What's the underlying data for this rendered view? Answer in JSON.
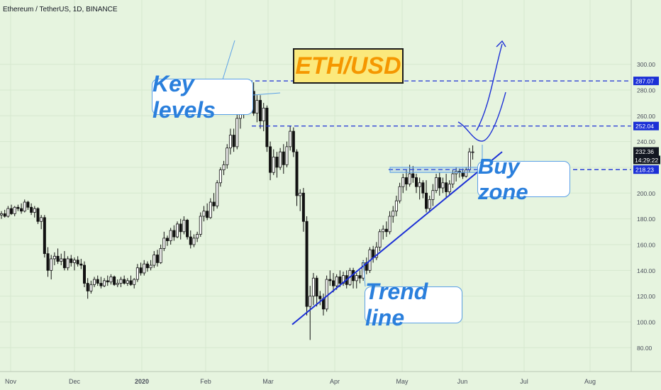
{
  "header": {
    "symbol": "Ethereum / TetherUS, 1D, BINANCE"
  },
  "annotations": {
    "title_box": "ETH/USD",
    "key_levels": "Key levels",
    "buy_zone": "Buy zone",
    "trend_line": "Trend line",
    "countdown": "14:29:22"
  },
  "colors": {
    "background": "#e6f4df",
    "candle": "#111111",
    "level_line": "#1b2fd6",
    "trend_line": "#1b2fd6",
    "label_bg": "#1b2fd6",
    "price_label_bg": "#131722",
    "callout_text": "#2a7fdc",
    "title_text": "#f59700",
    "title_bg": "#fbe97c"
  },
  "chart_data": {
    "type": "candlestick",
    "title": "Ethereum / TetherUS, 1D, BINANCE",
    "x_axis_ticks": [
      "Nov",
      "Dec",
      "2020",
      "Feb",
      "Mar",
      "Apr",
      "May",
      "Jun",
      "Jul",
      "Aug"
    ],
    "y_axis_ticks": [
      "300.00",
      "280.00",
      "260.00",
      "240.00",
      "220.00",
      "200.00",
      "180.00",
      "160.00",
      "140.00",
      "120.00",
      "100.00",
      "80.00"
    ],
    "ylim": [
      76,
      304
    ],
    "price_labels": [
      "287.07",
      "252.04",
      "232.36",
      "218.23"
    ],
    "horizontal_levels": [
      287.07,
      252.04,
      218.23
    ],
    "current_price": 232.36,
    "trend_line": {
      "from": [
        "2020-03-13",
        98
      ],
      "to": [
        "2020-06-20",
        232
      ]
    },
    "projected_path": "up from buy zone toward 287.07",
    "buy_zone": {
      "low": 216,
      "high": 220
    },
    "candles_ohlc_daily_approx": [
      [
        183,
        186,
        180,
        184
      ],
      [
        184,
        187,
        181,
        182
      ],
      [
        182,
        190,
        181,
        188
      ],
      [
        188,
        191,
        183,
        184
      ],
      [
        184,
        190,
        182,
        189
      ],
      [
        189,
        191,
        186,
        188
      ],
      [
        188,
        192,
        184,
        186
      ],
      [
        186,
        195,
        185,
        193
      ],
      [
        193,
        194,
        187,
        189
      ],
      [
        189,
        192,
        183,
        185
      ],
      [
        185,
        190,
        181,
        188
      ],
      [
        188,
        189,
        176,
        178
      ],
      [
        178,
        183,
        172,
        181
      ],
      [
        181,
        183,
        150,
        153
      ],
      [
        153,
        158,
        135,
        140
      ],
      [
        140,
        152,
        133,
        149
      ],
      [
        149,
        154,
        144,
        151
      ],
      [
        151,
        157,
        145,
        147
      ],
      [
        147,
        153,
        144,
        149
      ],
      [
        149,
        155,
        140,
        142
      ],
      [
        142,
        151,
        140,
        149
      ],
      [
        149,
        152,
        143,
        146
      ],
      [
        146,
        150,
        140,
        148
      ],
      [
        148,
        151,
        143,
        145
      ],
      [
        145,
        149,
        141,
        144
      ],
      [
        144,
        147,
        127,
        130
      ],
      [
        130,
        134,
        118,
        124
      ],
      [
        124,
        132,
        122,
        129
      ],
      [
        129,
        135,
        127,
        133
      ],
      [
        133,
        136,
        128,
        130
      ],
      [
        130,
        135,
        126,
        128
      ],
      [
        128,
        134,
        127,
        132
      ],
      [
        132,
        136,
        128,
        131
      ],
      [
        131,
        137,
        129,
        135
      ],
      [
        135,
        136,
        128,
        129
      ],
      [
        129,
        133,
        127,
        130
      ],
      [
        130,
        135,
        127,
        133
      ],
      [
        133,
        136,
        129,
        130
      ],
      [
        130,
        134,
        128,
        132
      ],
      [
        132,
        136,
        128,
        129
      ],
      [
        129,
        134,
        126,
        133
      ],
      [
        133,
        145,
        131,
        142
      ],
      [
        142,
        146,
        136,
        138
      ],
      [
        138,
        148,
        136,
        145
      ],
      [
        145,
        147,
        139,
        142
      ],
      [
        142,
        148,
        140,
        144
      ],
      [
        144,
        155,
        142,
        152
      ],
      [
        152,
        156,
        143,
        146
      ],
      [
        146,
        160,
        145,
        157
      ],
      [
        157,
        170,
        155,
        165
      ],
      [
        165,
        167,
        159,
        163
      ],
      [
        163,
        173,
        160,
        171
      ],
      [
        171,
        175,
        163,
        166
      ],
      [
        166,
        178,
        165,
        176
      ],
      [
        176,
        180,
        164,
        170
      ],
      [
        170,
        182,
        168,
        179
      ],
      [
        179,
        180,
        164,
        166
      ],
      [
        166,
        171,
        157,
        160
      ],
      [
        160,
        168,
        158,
        165
      ],
      [
        165,
        170,
        162,
        168
      ],
      [
        168,
        185,
        166,
        182
      ],
      [
        182,
        190,
        178,
        186
      ],
      [
        186,
        192,
        179,
        181
      ],
      [
        181,
        196,
        180,
        193
      ],
      [
        193,
        200,
        186,
        190
      ],
      [
        190,
        210,
        188,
        208
      ],
      [
        208,
        220,
        205,
        218
      ],
      [
        218,
        225,
        214,
        222
      ],
      [
        222,
        238,
        219,
        235
      ],
      [
        235,
        250,
        230,
        245
      ],
      [
        245,
        250,
        232,
        236
      ],
      [
        236,
        262,
        234,
        258
      ],
      [
        258,
        268,
        250,
        262
      ],
      [
        262,
        284,
        258,
        278
      ],
      [
        278,
        288,
        262,
        270
      ],
      [
        270,
        282,
        264,
        279
      ],
      [
        279,
        286,
        260,
        262
      ],
      [
        262,
        276,
        255,
        272
      ],
      [
        272,
        276,
        250,
        256
      ],
      [
        256,
        270,
        248,
        266
      ],
      [
        266,
        268,
        232,
        236
      ],
      [
        236,
        240,
        210,
        216
      ],
      [
        216,
        234,
        214,
        228
      ],
      [
        228,
        232,
        212,
        220
      ],
      [
        220,
        235,
        218,
        232
      ],
      [
        232,
        238,
        215,
        222
      ],
      [
        222,
        240,
        220,
        236
      ],
      [
        236,
        252,
        233,
        248
      ],
      [
        248,
        251,
        228,
        232
      ],
      [
        232,
        234,
        190,
        198
      ],
      [
        198,
        203,
        186,
        200
      ],
      [
        200,
        204,
        170,
        178
      ],
      [
        178,
        182,
        105,
        112
      ],
      [
        112,
        128,
        86,
        120
      ],
      [
        120,
        138,
        113,
        134
      ],
      [
        134,
        136,
        112,
        120
      ],
      [
        120,
        124,
        113,
        118
      ],
      [
        118,
        122,
        105,
        110
      ],
      [
        110,
        136,
        108,
        133
      ],
      [
        133,
        140,
        128,
        132
      ],
      [
        132,
        138,
        123,
        128
      ],
      [
        128,
        137,
        125,
        135
      ],
      [
        135,
        140,
        127,
        130
      ],
      [
        130,
        139,
        128,
        136
      ],
      [
        136,
        140,
        126,
        129
      ],
      [
        129,
        142,
        128,
        140
      ],
      [
        140,
        142,
        126,
        132
      ],
      [
        132,
        138,
        126,
        136
      ],
      [
        136,
        140,
        130,
        134
      ],
      [
        134,
        148,
        132,
        146
      ],
      [
        146,
        150,
        137,
        140
      ],
      [
        140,
        158,
        138,
        156
      ],
      [
        156,
        159,
        146,
        150
      ],
      [
        150,
        162,
        148,
        158
      ],
      [
        158,
        172,
        155,
        170
      ],
      [
        170,
        175,
        164,
        172
      ],
      [
        172,
        178,
        166,
        170
      ],
      [
        170,
        186,
        168,
        182
      ],
      [
        182,
        190,
        177,
        186
      ],
      [
        186,
        198,
        182,
        194
      ],
      [
        194,
        208,
        192,
        205
      ],
      [
        205,
        215,
        200,
        212
      ],
      [
        212,
        218,
        202,
        207
      ],
      [
        207,
        222,
        205,
        215
      ],
      [
        215,
        221,
        208,
        212
      ],
      [
        212,
        215,
        200,
        205
      ],
      [
        205,
        212,
        195,
        208
      ],
      [
        208,
        210,
        196,
        200
      ],
      [
        200,
        210,
        185,
        188
      ],
      [
        188,
        198,
        185,
        195
      ],
      [
        195,
        207,
        190,
        202
      ],
      [
        202,
        215,
        200,
        212
      ],
      [
        212,
        216,
        198,
        204
      ],
      [
        204,
        212,
        200,
        208
      ],
      [
        208,
        215,
        196,
        201
      ],
      [
        201,
        210,
        198,
        207
      ],
      [
        207,
        218,
        204,
        215
      ],
      [
        215,
        220,
        209,
        217
      ],
      [
        217,
        219,
        212,
        216
      ],
      [
        216,
        219,
        211,
        213
      ],
      [
        213,
        220,
        212,
        218
      ],
      [
        218,
        235,
        216,
        232
      ],
      [
        232,
        237,
        226,
        232
      ]
    ]
  }
}
